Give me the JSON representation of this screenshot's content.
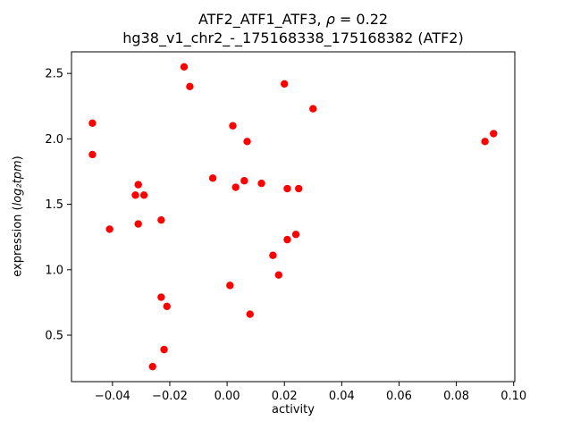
{
  "chart_data": {
    "type": "scatter",
    "title": {
      "prefix": "ATF2_ATF1_ATF3, ",
      "rho": "ρ",
      "suffix": " = 0.22"
    },
    "subtitle": "hg38_v1_chr2_-_175168338_175168382 (ATF2)",
    "xlabel": "activity",
    "ylabel": {
      "pre": "expression (",
      "math": "log₂tpm",
      "post": ")"
    },
    "xlim": [
      -0.0543,
      0.1004
    ],
    "ylim": [
      0.145,
      2.665
    ],
    "x_tick_values": [
      -0.04,
      -0.02,
      0.0,
      0.02,
      0.04,
      0.06,
      0.08,
      0.1
    ],
    "x_tick_labels": [
      "−0.04",
      "−0.02",
      "0.00",
      "0.02",
      "0.04",
      "0.06",
      "0.08",
      "0.10"
    ],
    "y_tick_values": [
      0.5,
      1.0,
      1.5,
      2.0,
      2.5
    ],
    "y_tick_labels": [
      "0.5",
      "1.0",
      "1.5",
      "2.0",
      "2.5"
    ],
    "marker_color": "#ff0000",
    "grid": false,
    "legend": null,
    "points": [
      [
        -0.047,
        2.12
      ],
      [
        -0.047,
        1.88
      ],
      [
        -0.041,
        1.31
      ],
      [
        -0.031,
        1.65
      ],
      [
        -0.032,
        1.57
      ],
      [
        -0.029,
        1.57
      ],
      [
        -0.031,
        1.35
      ],
      [
        -0.023,
        1.38
      ],
      [
        -0.026,
        0.26
      ],
      [
        -0.022,
        0.39
      ],
      [
        -0.023,
        0.79
      ],
      [
        -0.021,
        0.72
      ],
      [
        -0.015,
        2.55
      ],
      [
        -0.013,
        2.4
      ],
      [
        -0.005,
        1.7
      ],
      [
        0.002,
        2.1
      ],
      [
        0.003,
        1.63
      ],
      [
        0.001,
        0.88
      ],
      [
        0.007,
        1.98
      ],
      [
        0.006,
        1.68
      ],
      [
        0.012,
        1.66
      ],
      [
        0.008,
        0.66
      ],
      [
        0.016,
        1.11
      ],
      [
        0.018,
        0.96
      ],
      [
        0.02,
        2.42
      ],
      [
        0.021,
        1.62
      ],
      [
        0.025,
        1.62
      ],
      [
        0.021,
        1.23
      ],
      [
        0.024,
        1.27
      ],
      [
        0.03,
        2.23
      ],
      [
        0.09,
        1.98
      ],
      [
        0.093,
        2.04
      ]
    ]
  }
}
